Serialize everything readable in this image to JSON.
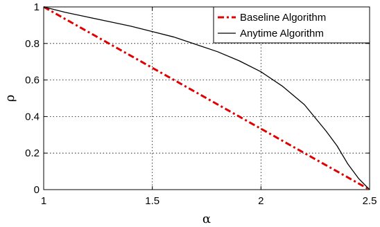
{
  "chart_data": {
    "type": "line",
    "xlabel": "α",
    "ylabel": "ρ",
    "xlim": [
      1,
      2.5
    ],
    "ylim": [
      0,
      1
    ],
    "xticks": [
      1,
      1.5,
      2,
      2.5
    ],
    "yticks": [
      0,
      0.2,
      0.4,
      0.6,
      0.8,
      1
    ],
    "xtick_labels": [
      "1",
      "1.5",
      "2",
      "2.5"
    ],
    "ytick_labels": [
      "0",
      "0.2",
      "0.4",
      "0.6",
      "0.8",
      "1"
    ],
    "grid": true,
    "legend_position": "top-right",
    "series": [
      {
        "name": "Baseline Algorithm",
        "color": "#e00000",
        "style": "dash-dot",
        "x": [
          1,
          2.5
        ],
        "y": [
          1,
          0
        ]
      },
      {
        "name": "Anytime Algorithm",
        "color": "#000000",
        "style": "solid",
        "x": [
          1,
          1.1,
          1.2,
          1.3,
          1.4,
          1.5,
          1.6,
          1.7,
          1.8,
          1.9,
          2.0,
          2.1,
          2.2,
          2.3,
          2.35,
          2.4,
          2.45,
          2.5
        ],
        "y": [
          1,
          0.97,
          0.945,
          0.92,
          0.895,
          0.865,
          0.835,
          0.795,
          0.755,
          0.705,
          0.645,
          0.565,
          0.465,
          0.32,
          0.24,
          0.14,
          0.06,
          0
        ]
      }
    ]
  }
}
